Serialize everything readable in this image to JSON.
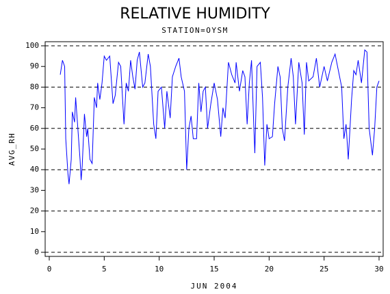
{
  "chart_data": {
    "type": "line",
    "title": "RELATIVE HUMIDITY",
    "subtitle": "STATION=OYSM",
    "xlabel": "JUN 2004",
    "ylabel": "AVG_RH",
    "xlim": [
      0,
      30
    ],
    "xticks": [
      0,
      5,
      10,
      15,
      20,
      25,
      30
    ],
    "ylim": [
      0,
      100
    ],
    "yticks": [
      0,
      10,
      20,
      30,
      40,
      50,
      60,
      70,
      80,
      90,
      100
    ],
    "gridlines": [
      0,
      20,
      40,
      60,
      80,
      100
    ],
    "grid_style": "dashed",
    "series": [
      {
        "name": "AVG_RH",
        "color": "#0000ff",
        "x": [
          1.0,
          1.2,
          1.4,
          1.5,
          1.7,
          1.8,
          2.0,
          2.1,
          2.3,
          2.4,
          2.6,
          2.8,
          2.9,
          3.0,
          3.2,
          3.4,
          3.5,
          3.7,
          3.9,
          4.1,
          4.3,
          4.4,
          4.6,
          4.8,
          5.0,
          5.2,
          5.5,
          5.8,
          6.0,
          6.3,
          6.5,
          6.8,
          7.0,
          7.2,
          7.4,
          7.6,
          7.8,
          8.0,
          8.2,
          8.5,
          8.7,
          9.0,
          9.2,
          9.5,
          9.7,
          9.9,
          10.2,
          10.5,
          10.7,
          11.0,
          11.2,
          11.5,
          11.8,
          12.0,
          12.3,
          12.5,
          12.7,
          12.9,
          13.1,
          13.4,
          13.6,
          13.8,
          14.0,
          14.2,
          14.4,
          14.7,
          15.0,
          15.3,
          15.6,
          15.8,
          16.0,
          16.3,
          16.6,
          16.9,
          17.0,
          17.3,
          17.6,
          17.8,
          18.0,
          18.2,
          18.4,
          18.6,
          18.7,
          18.9,
          19.2,
          19.4,
          19.6,
          19.8,
          20.0,
          20.3,
          20.5,
          20.8,
          21.0,
          21.2,
          21.4,
          21.7,
          22.0,
          22.2,
          22.4,
          22.7,
          23.0,
          23.2,
          23.4,
          23.6,
          24.0,
          24.3,
          24.6,
          25.0,
          25.3,
          25.7,
          26.0,
          26.3,
          26.6,
          26.8,
          27.0,
          27.2,
          27.5,
          27.7,
          27.9,
          28.1,
          28.4,
          28.7,
          28.9,
          29.1,
          29.4,
          29.6,
          29.8,
          30.0
        ],
        "values": [
          86,
          93,
          90,
          55,
          38,
          33,
          45,
          68,
          63,
          75,
          60,
          45,
          35,
          42,
          67,
          56,
          60,
          45,
          43,
          75,
          70,
          82,
          74,
          82,
          95,
          93,
          95,
          72,
          76,
          92,
          90,
          62,
          82,
          78,
          93,
          85,
          79,
          93,
          97,
          80,
          82,
          96,
          90,
          62,
          55,
          78,
          80,
          60,
          78,
          65,
          85,
          90,
          94,
          85,
          78,
          40,
          60,
          66,
          55,
          55,
          82,
          68,
          78,
          80,
          60,
          72,
          82,
          74,
          56,
          70,
          65,
          92,
          86,
          82,
          92,
          78,
          88,
          85,
          62,
          82,
          93,
          62,
          48,
          90,
          92,
          75,
          42,
          62,
          55,
          56,
          72,
          90,
          85,
          60,
          54,
          80,
          94,
          85,
          62,
          92,
          82,
          57,
          92,
          83,
          85,
          94,
          80,
          90,
          83,
          92,
          96,
          88,
          80,
          55,
          62,
          45,
          74,
          88,
          86,
          93,
          82,
          98,
          97,
          60,
          47,
          60,
          80,
          83
        ]
      }
    ]
  }
}
